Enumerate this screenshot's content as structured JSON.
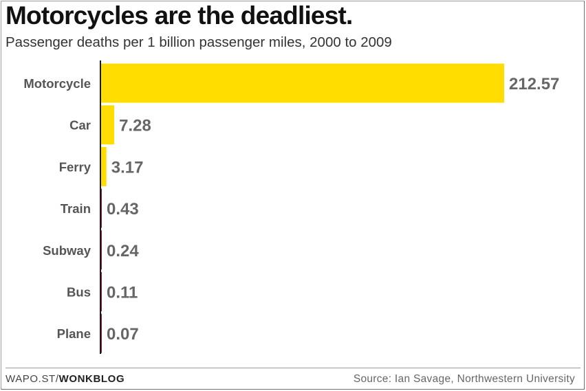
{
  "chart_data": {
    "type": "bar",
    "orientation": "horizontal",
    "title": "Motorcycles are the deadliest.",
    "subtitle": "Passenger deaths per 1 billion passenger miles, 2000 to 2009",
    "categories": [
      "Motorcycle",
      "Car",
      "Ferry",
      "Train",
      "Subway",
      "Bus",
      "Plane"
    ],
    "values": [
      212.57,
      7.28,
      3.17,
      0.43,
      0.24,
      0.11,
      0.07
    ],
    "value_labels": [
      "212.57",
      "7.28",
      "3.17",
      "0.43",
      "0.24",
      "0.11",
      "0.07"
    ],
    "bar_colors": [
      "#FFDD00",
      "#FFDD00",
      "#FFDD00",
      "#8B1A4A",
      "#8B1A4A",
      "#8B1A4A",
      "#8B1A4A"
    ],
    "xlim": [
      0,
      212.57
    ],
    "grid": false,
    "legend": "none"
  },
  "footer": {
    "brand_prefix": "WAPO.ST/",
    "brand_name": "WONKBLOG",
    "source": "Source: Ian Savage, Northwestern University"
  }
}
